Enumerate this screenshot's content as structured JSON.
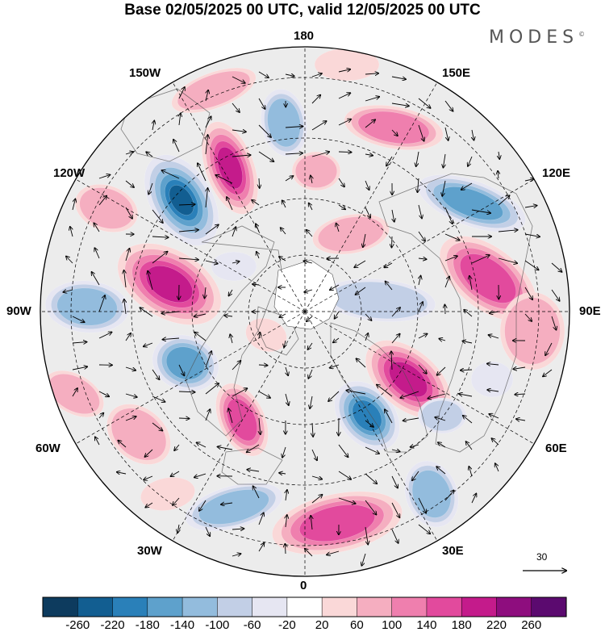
{
  "title": "Base 02/05/2025 00 UTC, valid 12/05/2025 00 UTC",
  "brand": "MODES",
  "brand_mark": "©",
  "longitude_labels": {
    "n180": "180",
    "w150": "150W",
    "e150": "150E",
    "w120": "120W",
    "e120": "120E",
    "w90": "90W",
    "e90": "90E",
    "w60": "60W",
    "e60": "60E",
    "w30": "30W",
    "e30": "30E",
    "s0": "0"
  },
  "reference_vector": {
    "label": "30"
  },
  "colorbar": {
    "ticks": [
      "-260",
      "-220",
      "-180",
      "-140",
      "-100",
      "-60",
      "-20",
      "20",
      "60",
      "100",
      "140",
      "180",
      "220",
      "260"
    ],
    "colors": [
      "#0d3b5e",
      "#125e91",
      "#2a80b9",
      "#5ea1cc",
      "#93bcdd",
      "#c2cfe6",
      "#e6e6f2",
      "#ffffff",
      "#fad8d8",
      "#f5aec0",
      "#ef7fae",
      "#e24a9d",
      "#c41b8b",
      "#8e0d7e",
      "#5b0a6f"
    ]
  },
  "map": {
    "projection": "north-polar-stereographic",
    "land_color": "#bdbdbd",
    "coast_color": "#505050",
    "grid_style": "dashed",
    "features": [
      "anomaly-blobs",
      "wind-vectors",
      "coastlines"
    ]
  }
}
